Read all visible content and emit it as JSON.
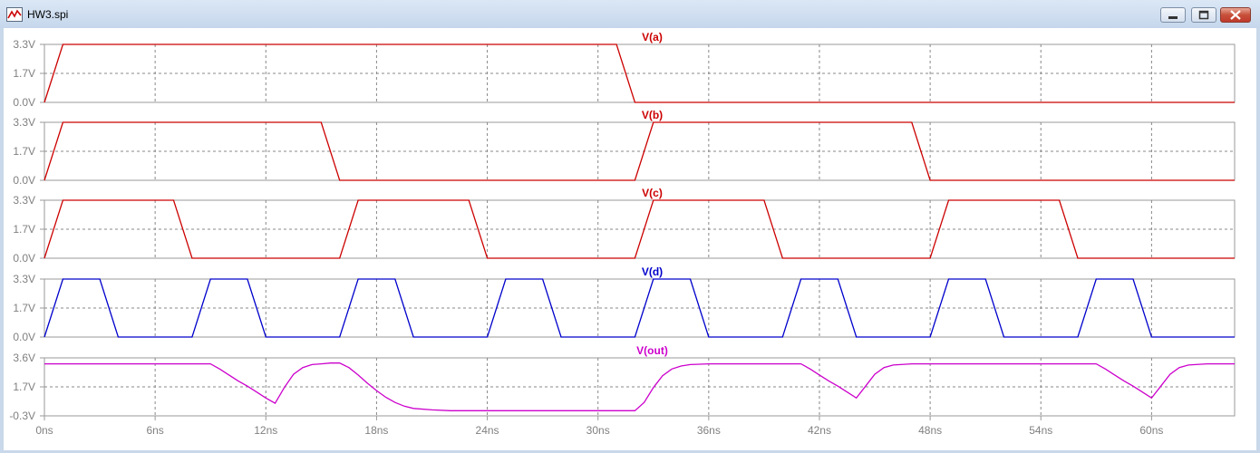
{
  "window": {
    "title": "HW3.spi",
    "icon": "waveform-icon",
    "buttons": {
      "minimize": "minimize-icon",
      "maximize": "maximize-icon",
      "close": "close-icon"
    }
  },
  "chart_data": {
    "type": "line",
    "x_ticks": [
      "0ns",
      "6ns",
      "12ns",
      "18ns",
      "24ns",
      "30ns",
      "36ns",
      "42ns",
      "48ns",
      "54ns",
      "60ns"
    ],
    "x_unit": "ns",
    "xlim": [
      0,
      64.5
    ],
    "grid": true,
    "panels": [
      {
        "name": "V(a)",
        "color": "#cc0000",
        "y_ticks": [
          "3.3V",
          "1.7V",
          "0.0V"
        ],
        "ylim": [
          0,
          3.3
        ],
        "x": [
          0,
          1,
          31,
          32,
          64.5
        ],
        "y": [
          0,
          3.3,
          3.3,
          0,
          0
        ]
      },
      {
        "name": "V(b)",
        "color": "#cc0000",
        "y_ticks": [
          "3.3V",
          "1.7V",
          "0.0V"
        ],
        "ylim": [
          0,
          3.3
        ],
        "x": [
          0,
          1,
          15,
          16,
          32,
          33,
          47,
          48,
          64.5
        ],
        "y": [
          0,
          3.3,
          3.3,
          0,
          0,
          3.3,
          3.3,
          0,
          0
        ]
      },
      {
        "name": "V(c)",
        "color": "#cc0000",
        "y_ticks": [
          "3.3V",
          "1.7V",
          "0.0V"
        ],
        "ylim": [
          0,
          3.3
        ],
        "x": [
          0,
          1,
          7,
          8,
          16,
          17,
          23,
          24,
          32,
          33,
          39,
          40,
          48,
          49,
          55,
          56,
          64.5
        ],
        "y": [
          0,
          3.3,
          3.3,
          0,
          0,
          3.3,
          3.3,
          0,
          0,
          3.3,
          3.3,
          0,
          0,
          3.3,
          3.3,
          0,
          0
        ]
      },
      {
        "name": "V(d)",
        "color": "#0000cc",
        "y_ticks": [
          "3.3V",
          "1.7V",
          "0.0V"
        ],
        "ylim": [
          0,
          3.3
        ],
        "x": [
          0,
          1,
          3,
          4,
          8,
          9,
          11,
          12,
          16,
          17,
          19,
          20,
          24,
          25,
          27,
          28,
          32,
          33,
          35,
          36,
          40,
          41,
          43,
          44,
          48,
          49,
          51,
          52,
          56,
          57,
          59,
          60,
          64.5
        ],
        "y": [
          0,
          3.3,
          3.3,
          0,
          0,
          3.3,
          3.3,
          0,
          0,
          3.3,
          3.3,
          0,
          0,
          3.3,
          3.3,
          0,
          0,
          3.3,
          3.3,
          0,
          0,
          3.3,
          3.3,
          0,
          0,
          3.3,
          3.3,
          0,
          0,
          3.3,
          3.3,
          0,
          0
        ]
      },
      {
        "name": "V(out)",
        "color": "#cc00cc",
        "y_ticks": [
          "3.6V",
          "1.7V",
          "-0.3V"
        ],
        "ylim": [
          -0.3,
          3.6
        ],
        "x": [
          0,
          9.0,
          9.5,
          10.0,
          10.5,
          11.0,
          11.5,
          12.0,
          12.5,
          13.0,
          13.5,
          14.0,
          14.5,
          15.0,
          15.5,
          16.0,
          16.5,
          17.0,
          17.5,
          18.0,
          18.5,
          19.0,
          19.5,
          20.0,
          21.0,
          22.0,
          24.0,
          28.0,
          32.0,
          32.5,
          33.0,
          33.5,
          34.0,
          34.5,
          35.0,
          36.0,
          38.0,
          41.0,
          41.5,
          42.0,
          42.5,
          43.0,
          43.5,
          44.0,
          44.5,
          45.0,
          45.5,
          46.0,
          47.0,
          48.0,
          52.0,
          57.0,
          57.5,
          58.0,
          58.5,
          59.0,
          59.5,
          60.0,
          60.5,
          61.0,
          61.5,
          62.0,
          63.0,
          64.5
        ],
        "y": [
          3.2,
          3.2,
          2.85,
          2.45,
          2.05,
          1.7,
          1.3,
          0.9,
          0.55,
          1.6,
          2.5,
          2.95,
          3.15,
          3.2,
          3.25,
          3.25,
          2.95,
          2.45,
          1.9,
          1.4,
          0.95,
          0.6,
          0.35,
          0.2,
          0.1,
          0.05,
          0.05,
          0.05,
          0.05,
          0.6,
          1.6,
          2.4,
          2.85,
          3.05,
          3.15,
          3.2,
          3.2,
          3.2,
          2.85,
          2.45,
          2.05,
          1.7,
          1.3,
          0.9,
          1.7,
          2.5,
          2.95,
          3.12,
          3.2,
          3.2,
          3.2,
          3.2,
          2.85,
          2.45,
          2.05,
          1.7,
          1.3,
          0.9,
          1.7,
          2.5,
          2.95,
          3.12,
          3.2,
          3.2
        ]
      }
    ]
  }
}
